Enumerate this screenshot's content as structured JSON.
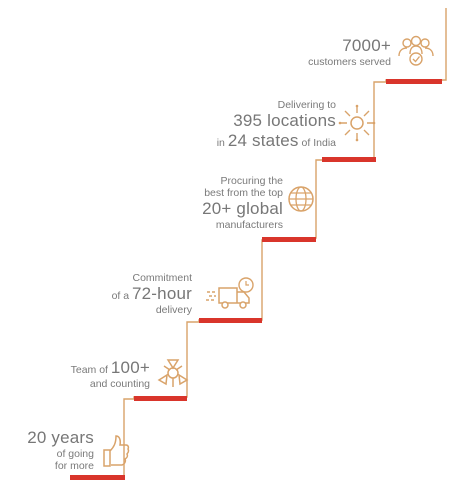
{
  "colors": {
    "line": "#d9a36a",
    "tread": "#d9352b",
    "icon": "#d9a36a",
    "text": "#7a7a7a"
  },
  "steps": [
    {
      "id": "experience",
      "big1": "20 years",
      "small1": "of going",
      "small2": "for more",
      "icon": "thumbs-up-icon"
    },
    {
      "id": "team",
      "pre": "Team of",
      "big": "100+",
      "small": "and counting",
      "icon": "team-hands-icon"
    },
    {
      "id": "delivery",
      "small1": "Commitment",
      "pre": "of a",
      "big": "72-hour",
      "small2": "delivery",
      "icon": "delivery-truck-icon"
    },
    {
      "id": "procurement",
      "small1": "Procuring the",
      "small2": "best from the top",
      "big": "20+ global",
      "small3": "manufacturers",
      "icon": "globe-icon"
    },
    {
      "id": "locations",
      "small1": "Delivering to",
      "big1": "395 locations",
      "pre": "in",
      "big2": "24 states",
      "post": "of India",
      "icon": "sun-network-icon"
    },
    {
      "id": "customers",
      "big": "7000+",
      "small": "customers served",
      "icon": "customers-check-icon"
    }
  ]
}
